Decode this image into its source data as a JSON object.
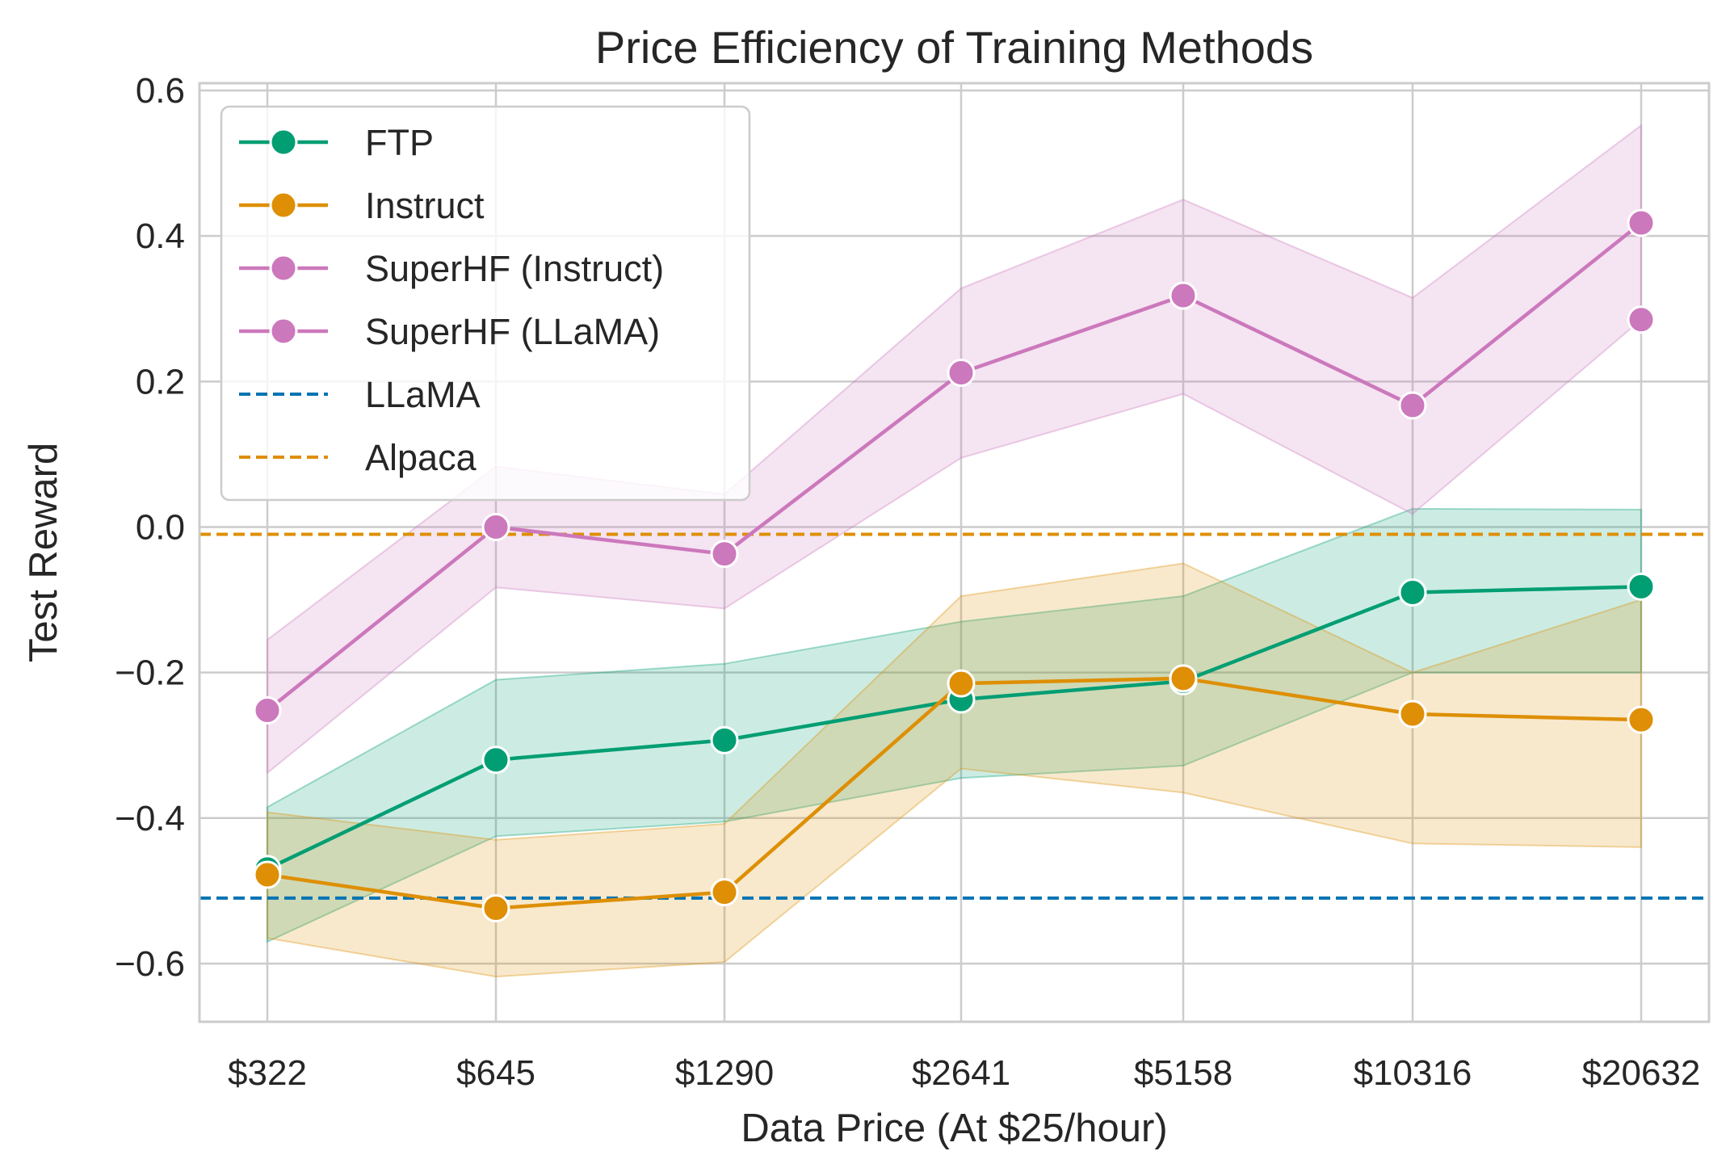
{
  "chart_data": {
    "type": "line",
    "title": "Price Efficiency of Training Methods",
    "xlabel": "Data Price (At $25/hour)",
    "ylabel": "Test Reward",
    "categories": [
      "$322",
      "$645",
      "$1290",
      "$2641",
      "$5158",
      "$10316",
      "$20632"
    ],
    "x_positions": [
      322,
      645,
      1290,
      2641,
      5158,
      10316,
      20632
    ],
    "x_scale": "log",
    "ylim": [
      -0.68,
      0.61
    ],
    "yticks": [
      -0.6,
      -0.4,
      -0.2,
      0.0,
      0.2,
      0.4,
      0.6
    ],
    "ytick_labels": [
      "−0.6",
      "−0.4",
      "−0.2",
      "0.0",
      "0.2",
      "0.4",
      "0.6"
    ],
    "grid": true,
    "legend_position": "top-left",
    "series": [
      {
        "name": "FTP",
        "color": "#029e73",
        "values": [
          -0.47,
          -0.32,
          -0.293,
          -0.237,
          -0.212,
          -0.09,
          -0.082
        ],
        "ci_low": [
          -0.57,
          -0.425,
          -0.405,
          -0.345,
          -0.328,
          -0.2,
          -0.2
        ],
        "ci_high": [
          -0.385,
          -0.21,
          -0.188,
          -0.13,
          -0.095,
          0.025,
          0.024
        ]
      },
      {
        "name": "Instruct",
        "color": "#de8f05",
        "values": [
          -0.478,
          -0.524,
          -0.502,
          -0.215,
          -0.208,
          -0.257,
          -0.265
        ],
        "ci_low": [
          -0.565,
          -0.618,
          -0.598,
          -0.332,
          -0.365,
          -0.435,
          -0.44
        ],
        "ci_high": [
          -0.392,
          -0.43,
          -0.408,
          -0.095,
          -0.05,
          -0.2,
          -0.1
        ]
      },
      {
        "name": "SuperHF (Instruct)",
        "color": "#cc78bc",
        "values": [
          -0.252,
          0.0,
          -0.037,
          0.212,
          0.318,
          0.167,
          0.418
        ],
        "ci_low": [
          -0.338,
          -0.083,
          -0.112,
          0.095,
          0.183,
          0.018,
          0.285
        ],
        "ci_high": [
          -0.155,
          0.083,
          0.045,
          0.328,
          0.45,
          0.315,
          0.552
        ]
      },
      {
        "name": "SuperHF (LLaMA)",
        "color": "#cc78bc",
        "points": [
          {
            "x": 20632,
            "y": 0.285
          }
        ]
      }
    ],
    "reference_lines": [
      {
        "name": "LLaMA",
        "y": -0.51,
        "color": "#0173b2",
        "style": "dashed"
      },
      {
        "name": "Alpaca",
        "y": -0.01,
        "color": "#de8f05",
        "style": "dashed"
      }
    ]
  }
}
